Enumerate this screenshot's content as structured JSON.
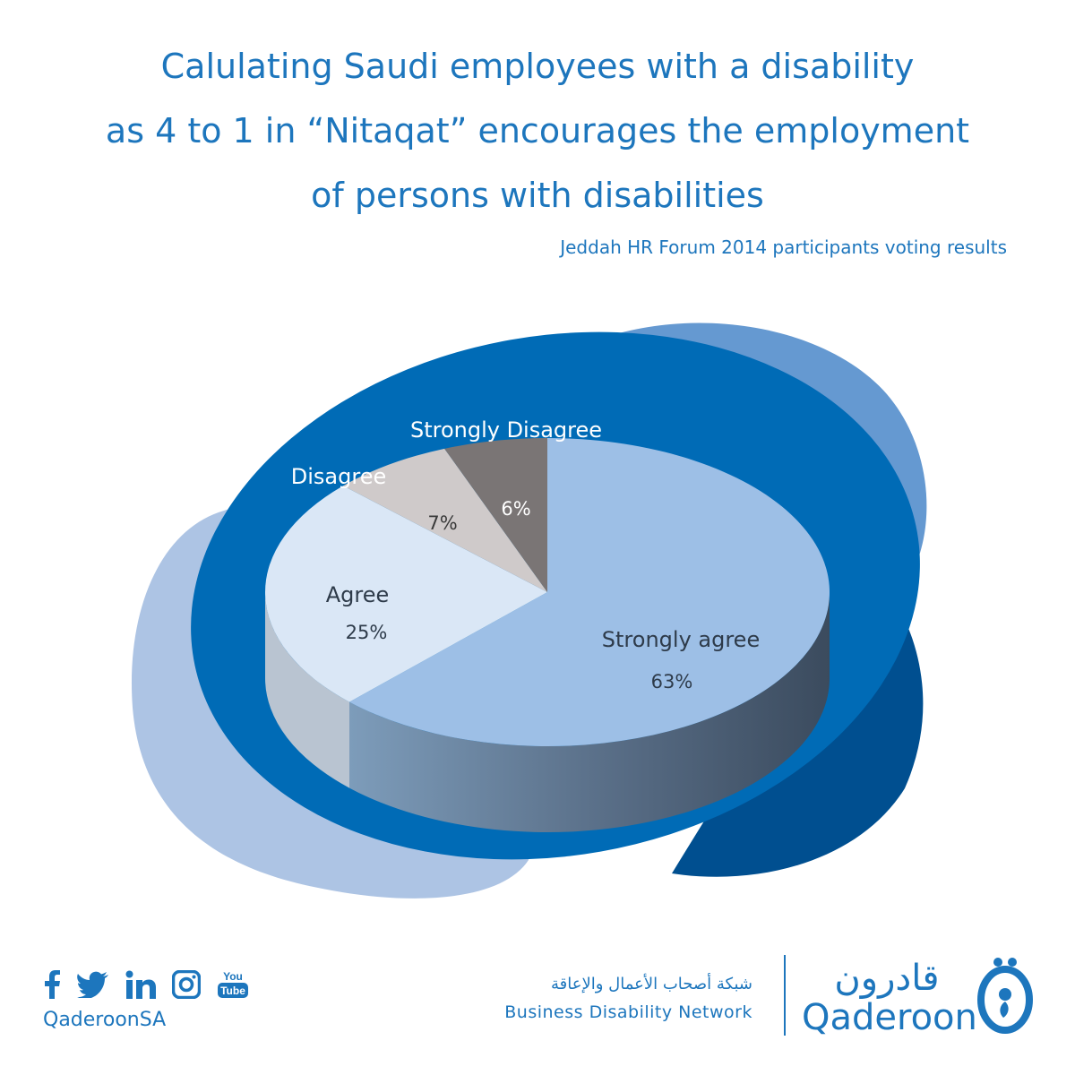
{
  "title_lines": [
    "Calulating Saudi employees with a disability",
    "as 4 to 1 in “Nitaqat”  encourages the employment",
    "of persons with disabilities"
  ],
  "subtitle": "Jeddah HR Forum 2014 participants voting results",
  "chart_data": {
    "type": "pie",
    "title": "",
    "slices": [
      {
        "label": "Strongly agree",
        "value": 63,
        "value_label": "63%",
        "color": "#9dbfe6"
      },
      {
        "label": "Agree",
        "value": 25,
        "value_label": "25%",
        "color": "#dae7f6"
      },
      {
        "label": "Disagree",
        "value": 7,
        "value_label": "7%",
        "color": "#cfcaca"
      },
      {
        "label": "Strongly Disagree",
        "value": 6,
        "value_label": "6%",
        "color": "#7a7575"
      }
    ],
    "legend": "none"
  },
  "colors": {
    "primary_blue": "#006bb6",
    "text_blue": "#1d76bd",
    "pale_blob": "#adc4e4",
    "mid_blob": "#6599d1",
    "dark_blob": "#004f90"
  },
  "footer": {
    "social_icons": [
      "facebook-icon",
      "twitter-icon",
      "linkedin-icon",
      "instagram-icon",
      "youtube-icon"
    ],
    "youtube_label_top": "You",
    "youtube_label_bottom": "Tube",
    "handle": "QaderoonSA",
    "network_arabic": "شبكة أصحاب الأعمال والإعاقة",
    "network_english": "Business Disability Network",
    "brand_arabic": "قادرون",
    "brand_english": "Qaderoon"
  }
}
